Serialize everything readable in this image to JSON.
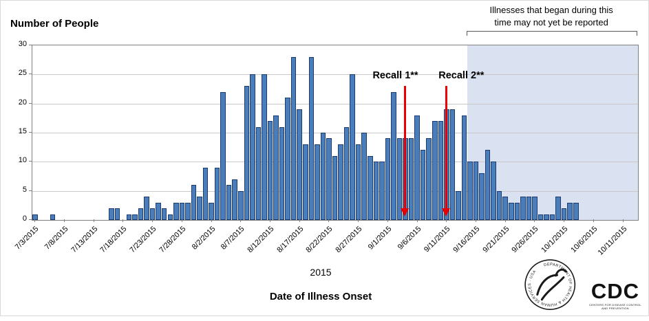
{
  "header": {
    "y_axis_title": "Number of People",
    "annotation_line1": "Illnesses that began during this",
    "annotation_line2": "time may not yet be reported"
  },
  "footer": {
    "year": "2015",
    "x_axis_title": "Date of Illness Onset"
  },
  "logos": {
    "hhs_seal_text": "DEPARTMENT OF HEALTH & HUMAN SERVICES · USA",
    "cdc_text": "CDC",
    "cdc_subtext": "CENTERS FOR DISEASE CONTROL AND PREVENTION"
  },
  "colors": {
    "bar_fill": "#4a7ebb",
    "bar_border": "#1c3a6e",
    "shade": "#dae2f1",
    "gridline": "#c8c8c8",
    "axis": "#7f7f7f",
    "arrow": "#e80000"
  },
  "chart_data": {
    "type": "bar",
    "title": "",
    "xlabel": "Date of Illness Onset",
    "ylabel": "Number of People",
    "ylim": [
      0,
      30
    ],
    "y_tick_step": 5,
    "grid": true,
    "x_tick_labels": [
      "7/3/2015",
      "7/8/2015",
      "7/13/2015",
      "7/18/2015",
      "7/23/2015",
      "7/28/2015",
      "8/2/2015",
      "8/7/2015",
      "8/12/2015",
      "8/17/2015",
      "8/22/2015",
      "8/27/2015",
      "9/1/2015",
      "9/6/2015",
      "9/11/2015",
      "9/16/2015",
      "9/21/2015",
      "9/26/2015",
      "10/1/2015",
      "10/6/2015",
      "10/11/2015"
    ],
    "dates": [
      "7/3/2015",
      "7/4/2015",
      "7/5/2015",
      "7/6/2015",
      "7/7/2015",
      "7/8/2015",
      "7/9/2015",
      "7/10/2015",
      "7/11/2015",
      "7/12/2015",
      "7/13/2015",
      "7/14/2015",
      "7/15/2015",
      "7/16/2015",
      "7/17/2015",
      "7/18/2015",
      "7/19/2015",
      "7/20/2015",
      "7/21/2015",
      "7/22/2015",
      "7/23/2015",
      "7/24/2015",
      "7/25/2015",
      "7/26/2015",
      "7/27/2015",
      "7/28/2015",
      "7/29/2015",
      "7/30/2015",
      "7/31/2015",
      "8/1/2015",
      "8/2/2015",
      "8/3/2015",
      "8/4/2015",
      "8/5/2015",
      "8/6/2015",
      "8/7/2015",
      "8/8/2015",
      "8/9/2015",
      "8/10/2015",
      "8/11/2015",
      "8/12/2015",
      "8/13/2015",
      "8/14/2015",
      "8/15/2015",
      "8/16/2015",
      "8/17/2015",
      "8/18/2015",
      "8/19/2015",
      "8/20/2015",
      "8/21/2015",
      "8/22/2015",
      "8/23/2015",
      "8/24/2015",
      "8/25/2015",
      "8/26/2015",
      "8/27/2015",
      "8/28/2015",
      "8/29/2015",
      "8/30/2015",
      "8/31/2015",
      "9/1/2015",
      "9/2/2015",
      "9/3/2015",
      "9/4/2015",
      "9/5/2015",
      "9/6/2015",
      "9/7/2015",
      "9/8/2015",
      "9/9/2015",
      "9/10/2015",
      "9/11/2015",
      "9/12/2015",
      "9/13/2015",
      "9/14/2015",
      "9/15/2015",
      "9/16/2015",
      "9/17/2015",
      "9/18/2015",
      "9/19/2015",
      "9/20/2015",
      "9/21/2015",
      "9/22/2015",
      "9/23/2015",
      "9/24/2015",
      "9/25/2015",
      "9/26/2015",
      "9/27/2015",
      "9/28/2015",
      "9/29/2015",
      "9/30/2015",
      "10/1/2015",
      "10/2/2015",
      "10/3/2015",
      "10/4/2015",
      "10/5/2015",
      "10/6/2015",
      "10/7/2015",
      "10/8/2015",
      "10/9/2015",
      "10/10/2015",
      "10/11/2015",
      "10/12/2015",
      "10/13/2015"
    ],
    "values": [
      1,
      0,
      0,
      1,
      0,
      0,
      0,
      0,
      0,
      0,
      0,
      0,
      0,
      2,
      2,
      0,
      1,
      1,
      2,
      4,
      2,
      3,
      2,
      1,
      3,
      3,
      3,
      6,
      4,
      9,
      3,
      9,
      22,
      6,
      7,
      5,
      23,
      25,
      16,
      25,
      17,
      18,
      16,
      21,
      28,
      19,
      13,
      28,
      13,
      15,
      14,
      11,
      13,
      16,
      25,
      13,
      15,
      11,
      10,
      10,
      14,
      22,
      14,
      14,
      14,
      18,
      12,
      14,
      17,
      17,
      19,
      19,
      5,
      18,
      10,
      10,
      8,
      12,
      10,
      5,
      4,
      3,
      3,
      4,
      4,
      4,
      1,
      1,
      1,
      4,
      2,
      3,
      3,
      0,
      0,
      0,
      0,
      0,
      0,
      0,
      0,
      0,
      0
    ],
    "not_yet_reported": {
      "start_date": "9/15/2015",
      "label": "Illnesses that began during this time may not yet be reported"
    },
    "recall_markers": [
      {
        "label": "Recall 1**",
        "date": "9/4/2015"
      },
      {
        "label": "Recall 2**",
        "date": "9/11/2015"
      }
    ]
  }
}
